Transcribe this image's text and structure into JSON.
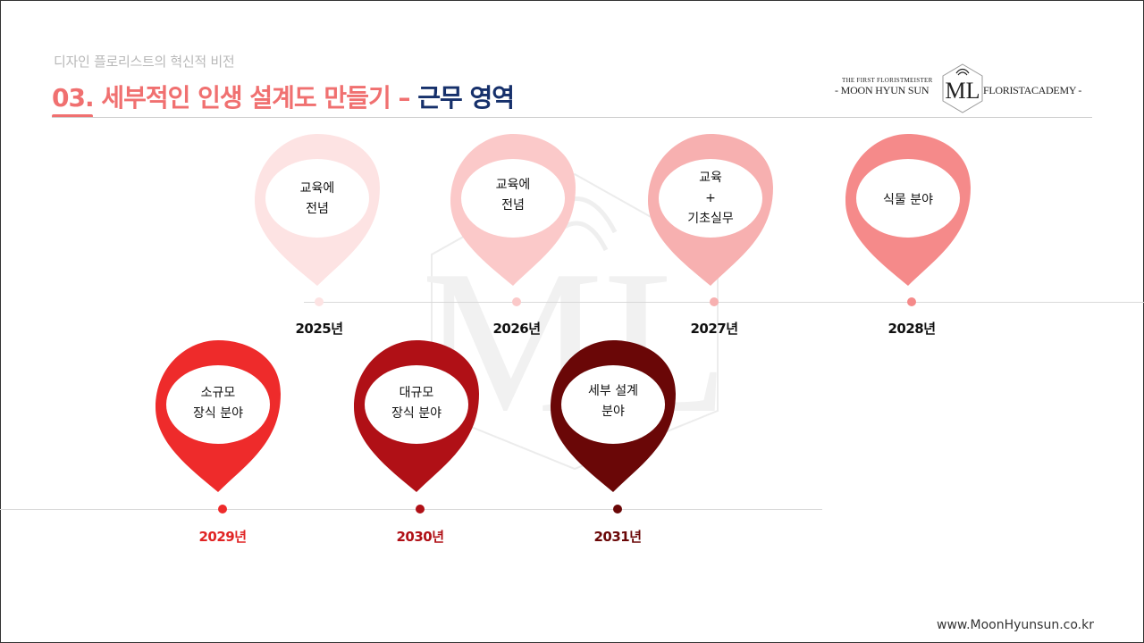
{
  "header": {
    "subtitle": "디자인 플로리스트의 혁신적 비전",
    "title_main": "03. 세부적인 인생 설계도 만들기 – ",
    "title_accent": "근무 영역"
  },
  "logo": {
    "small_line": "THE FIRST FLORISTMEISTER",
    "left_text": "- MOON HYUN SUN",
    "right_text": "FLORISTACADEMY -"
  },
  "colors": {
    "title_main": "#f07070",
    "title_accent": "#16306b",
    "pin_2025": "#fde3e3",
    "pin_2026": "#fbc9c9",
    "pin_2027": "#f7b0b0",
    "pin_2028": "#f58a8a",
    "pin_2029": "#ee2b2b",
    "pin_2030": "#b01016",
    "pin_2031": "#6a0707"
  },
  "timeline": [
    {
      "year": "2025년",
      "label": "교육에\n전념"
    },
    {
      "year": "2026년",
      "label": "교육에\n전념"
    },
    {
      "year": "2027년",
      "label": "교육\n+\n기초실무"
    },
    {
      "year": "2028년",
      "label": "식물 분야"
    },
    {
      "year": "2029년",
      "label": "소규모\n장식 분야"
    },
    {
      "year": "2030년",
      "label": "대규모\n장식 분야"
    },
    {
      "year": "2031년",
      "label": "세부 설계\n분야"
    }
  ],
  "footer": {
    "website": "www.MoonHyunsun.co.kr"
  }
}
